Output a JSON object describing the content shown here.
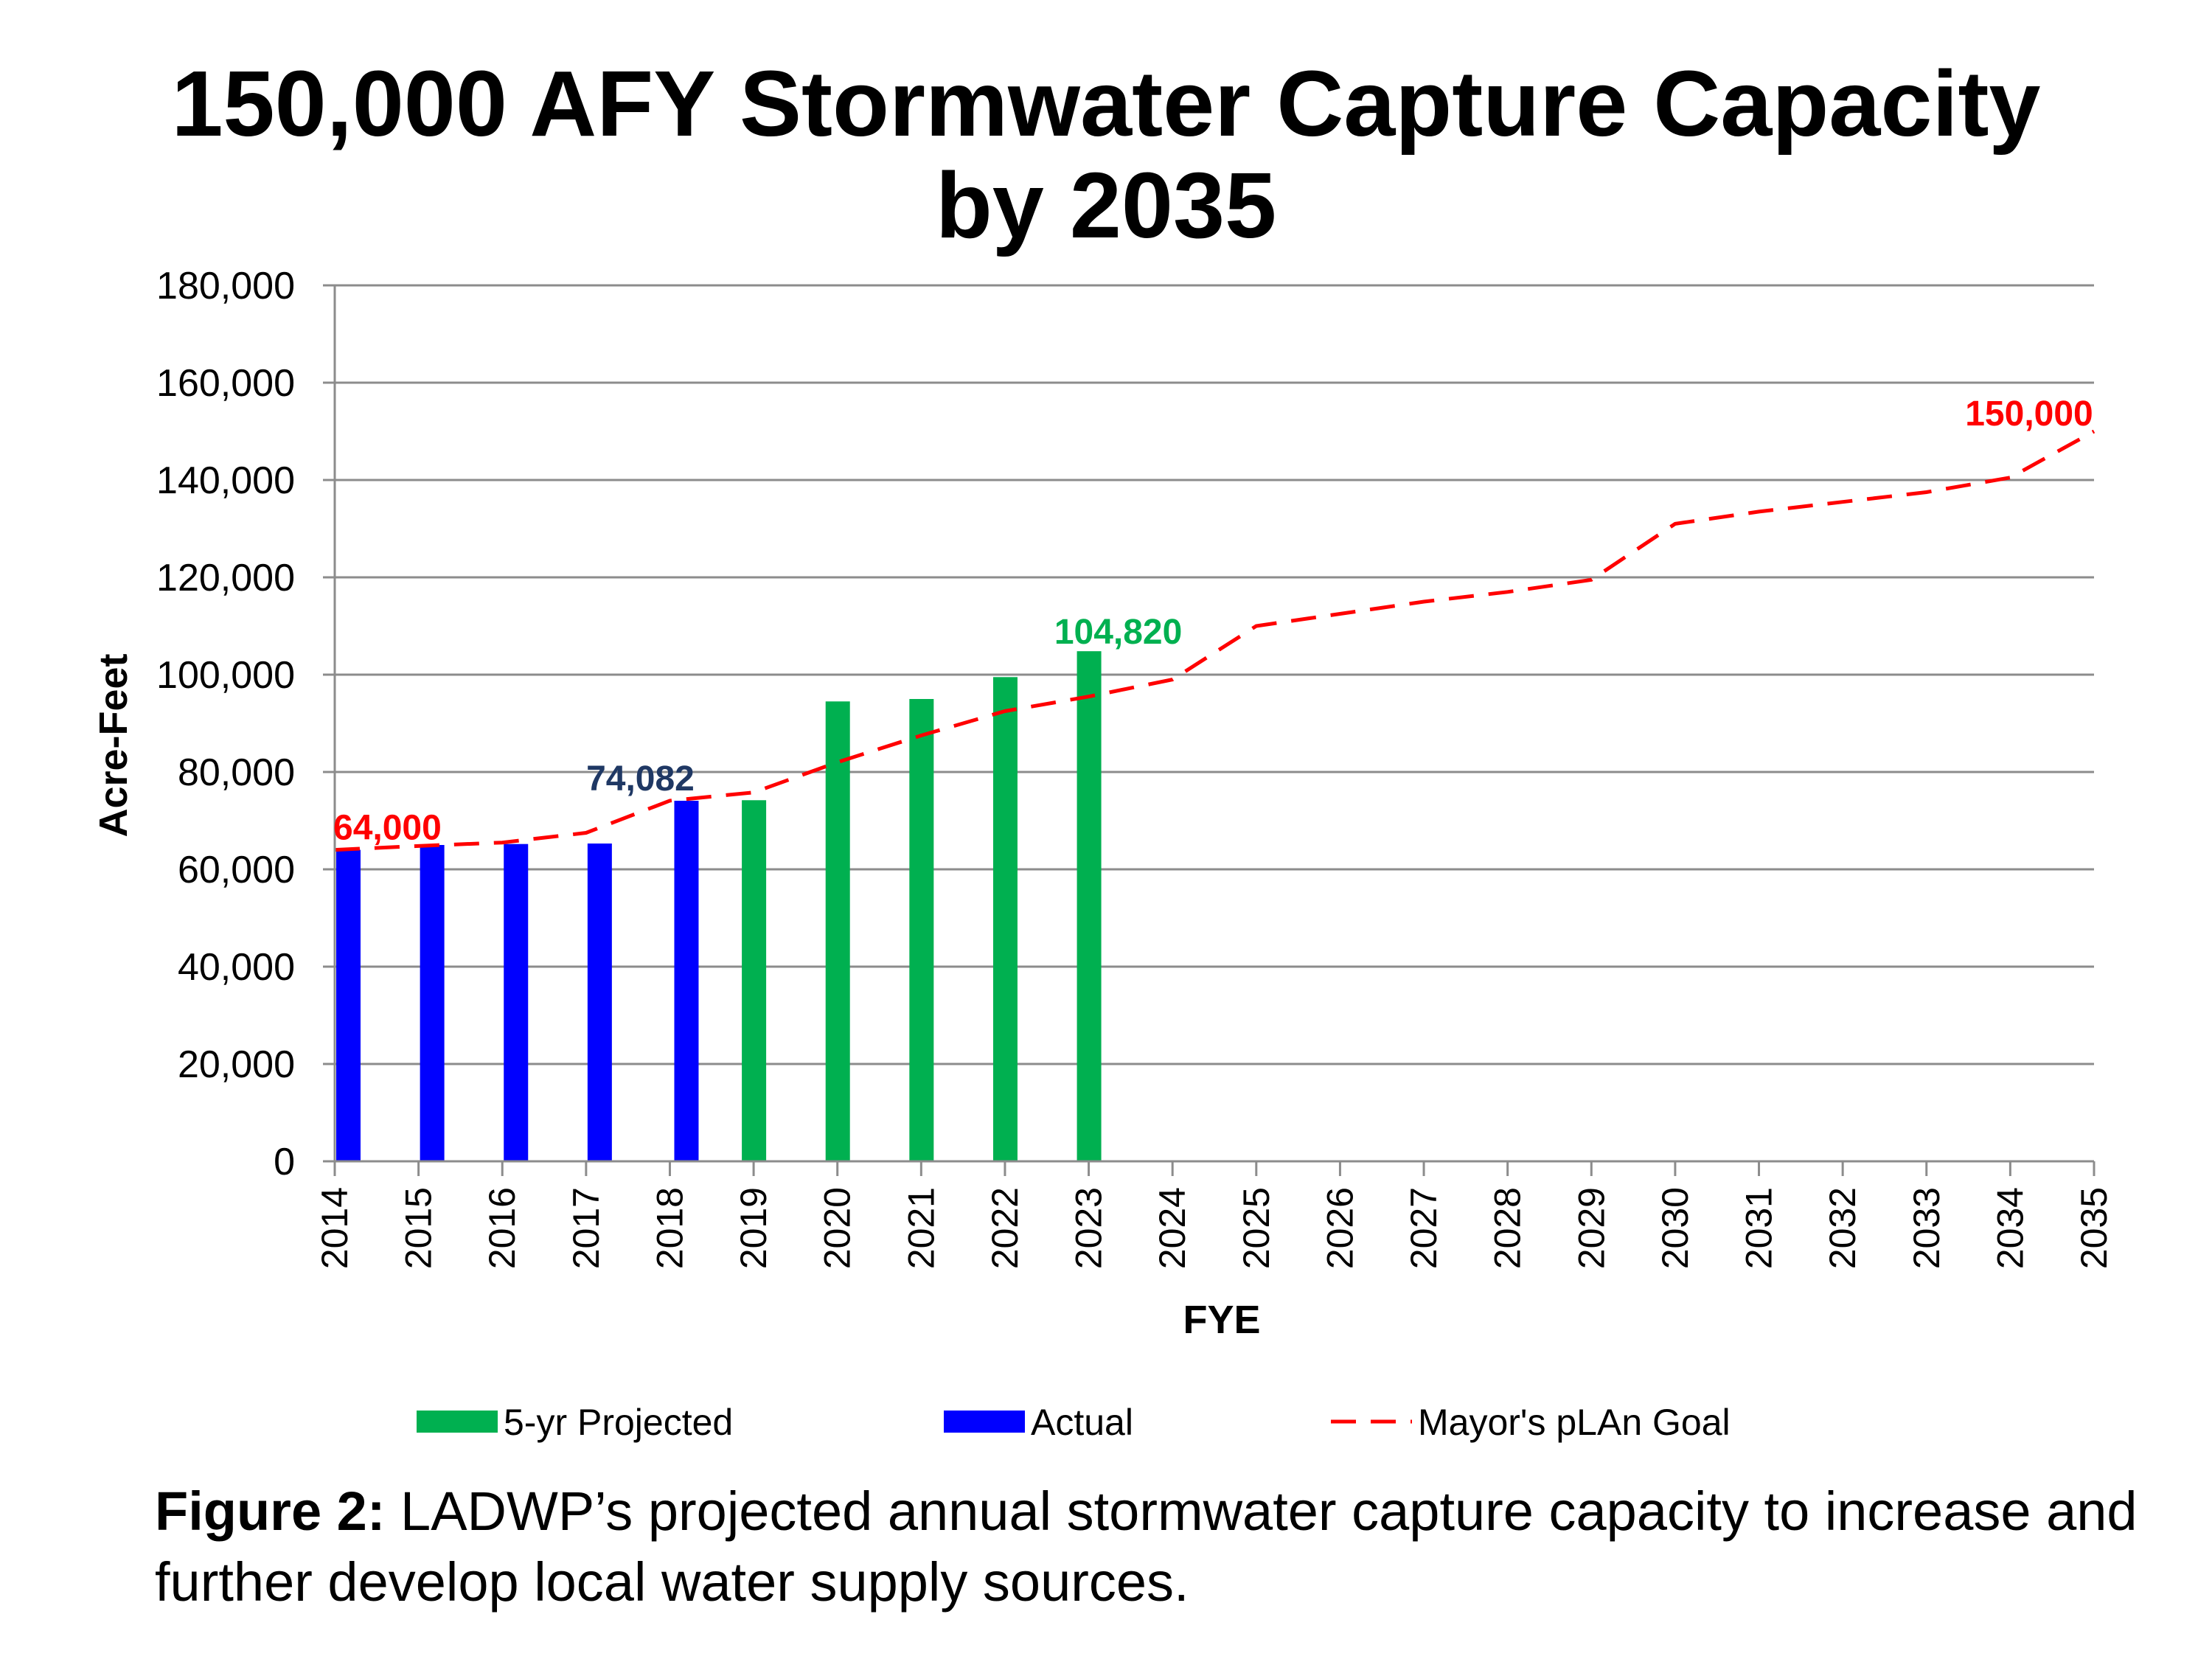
{
  "title": {
    "line1": "150,000 AFY Stormwater Capture Capacity",
    "line2": "by 2035"
  },
  "caption": {
    "label": "Figure 2:",
    "text": " LADWP’s projected annual stormwater capture capacity to increase and further develop local water supply sources."
  },
  "colors": {
    "projected": "#00b050",
    "actual": "#0000ff",
    "goal": "#ff0000",
    "label_actual": "#1f3864",
    "grid": "#8c8c8c"
  },
  "chart_data": {
    "type": "bar",
    "title": "150,000 AFY Stormwater Capture Capacity by 2035",
    "xlabel": "FYE",
    "ylabel": "Acre-Feet",
    "ylim": [
      0,
      180000
    ],
    "yticks": [
      0,
      20000,
      40000,
      60000,
      80000,
      100000,
      120000,
      140000,
      160000,
      180000
    ],
    "ytick_labels": [
      "0",
      "20,000",
      "40,000",
      "60,000",
      "80,000",
      "100,000",
      "120,000",
      "140,000",
      "160,000",
      "180,000"
    ],
    "categories": [
      "2014",
      "2015",
      "2016",
      "2017",
      "2018",
      "2019",
      "2020",
      "2021",
      "2022",
      "2023",
      "2024",
      "2025",
      "2026",
      "2027",
      "2028",
      "2029",
      "2030",
      "2031",
      "2032",
      "2033",
      "2034",
      "2035"
    ],
    "grid": true,
    "legend_position": "bottom",
    "series": [
      {
        "name": "5-yr Projected",
        "kind": "bar",
        "color": "#00b050",
        "values": [
          null,
          null,
          null,
          null,
          null,
          74200,
          94500,
          95000,
          99500,
          104820,
          null,
          null,
          null,
          null,
          null,
          null,
          null,
          null,
          null,
          null,
          null,
          null
        ]
      },
      {
        "name": "Actual",
        "kind": "bar",
        "color": "#0000ff",
        "values": [
          64000,
          65000,
          65200,
          65300,
          74082,
          null,
          null,
          null,
          null,
          null,
          null,
          null,
          null,
          null,
          null,
          null,
          null,
          null,
          null,
          null,
          null,
          null
        ]
      },
      {
        "name": "Mayor's pLAn Goal",
        "kind": "line",
        "style": "dashed",
        "color": "#ff0000",
        "values": [
          64000,
          64800,
          65500,
          67500,
          74100,
          75800,
          82000,
          87500,
          92500,
          95500,
          99000,
          110000,
          112500,
          115000,
          117000,
          119500,
          131000,
          133500,
          135500,
          137500,
          140500,
          150000
        ]
      }
    ],
    "annotations": [
      {
        "text": "64,000",
        "category": "2014",
        "value": 64000,
        "color": "#ff0000"
      },
      {
        "text": "74,082",
        "category": "2018",
        "value": 74082,
        "color": "#1f3864"
      },
      {
        "text": "104,820",
        "category": "2023",
        "value": 104820,
        "color": "#00b050"
      },
      {
        "text": "150,000",
        "category": "2035",
        "value": 150000,
        "color": "#ff0000"
      }
    ]
  }
}
